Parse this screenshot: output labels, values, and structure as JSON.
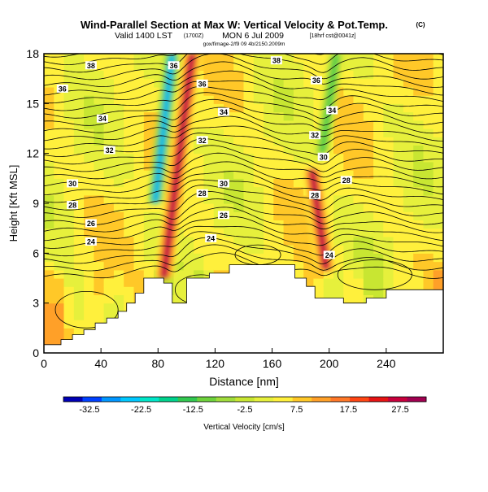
{
  "header": {
    "title": "Wind-Parallel Section at Max W: Vertical Velocity & Pot.Temp.",
    "copyright": "(C)",
    "valid_line": "Valid 1400 LST",
    "utc": "(1700Z)",
    "date": "MON 6 Jul 2009",
    "run": "[18hrf cst@0041z]",
    "subline": "gox/fimage-2/f9 09 4b/2150.2009m"
  },
  "chart_data": {
    "type": "heatmap",
    "xlabel": "Distance [nm]",
    "ylabel": "Height [Kft MSL]",
    "xlim": [
      0,
      280
    ],
    "ylim": [
      0,
      18
    ],
    "xticks": [
      0,
      40,
      80,
      120,
      160,
      200,
      240
    ],
    "yticks": [
      0,
      3,
      6,
      9,
      12,
      15,
      18
    ],
    "colorbar": {
      "label": "Vertical Velocity [cm/s]",
      "min": -37.5,
      "max": 32.5,
      "tick_values": [
        -32.5,
        -22.5,
        -12.5,
        -2.5,
        7.5,
        17.5,
        27.5
      ],
      "colors": [
        "#0000b4",
        "#0040ff",
        "#0096ff",
        "#00c8ff",
        "#00e6c8",
        "#00d28c",
        "#32c850",
        "#6ed23c",
        "#a0dc3c",
        "#c8e632",
        "#e6f03c",
        "#fff03c",
        "#ffc828",
        "#ffa028",
        "#ff7828",
        "#ff4614",
        "#e61414",
        "#c8003c",
        "#a00050"
      ]
    },
    "updraft_bands": [
      {
        "x_bottom": 84,
        "x_top": 104,
        "z_bottom": 4.5,
        "z_top": 18,
        "peak_cm_s": 32
      },
      {
        "x_bottom": 198,
        "x_top": 188,
        "z_bottom": 5,
        "z_top": 11,
        "peak_cm_s": 32
      }
    ],
    "downdraft_bands": [
      {
        "x_bottom": 78,
        "x_top": 90,
        "z_bottom": 9,
        "z_top": 18,
        "peak_cm_s": -30
      },
      {
        "x_bottom": 195,
        "x_top": 205,
        "z_bottom": 12,
        "z_top": 18,
        "peak_cm_s": -15
      }
    ],
    "theta_contour_labels": [
      {
        "value": "38",
        "x": 33,
        "z": 17.3
      },
      {
        "value": "36",
        "x": 13,
        "z": 15.9
      },
      {
        "value": "34",
        "x": 41,
        "z": 14.1
      },
      {
        "value": "32",
        "x": 46,
        "z": 12.2
      },
      {
        "value": "30",
        "x": 20,
        "z": 10.2
      },
      {
        "value": "28",
        "x": 20,
        "z": 8.9
      },
      {
        "value": "26",
        "x": 33,
        "z": 7.8
      },
      {
        "value": "24",
        "x": 33,
        "z": 6.7
      },
      {
        "value": "36",
        "x": 91,
        "z": 17.3
      },
      {
        "value": "36",
        "x": 111,
        "z": 16.2
      },
      {
        "value": "34",
        "x": 126,
        "z": 14.5
      },
      {
        "value": "32",
        "x": 111,
        "z": 12.8
      },
      {
        "value": "30",
        "x": 126,
        "z": 10.2
      },
      {
        "value": "28",
        "x": 111,
        "z": 9.6
      },
      {
        "value": "26",
        "x": 126,
        "z": 8.3
      },
      {
        "value": "24",
        "x": 117,
        "z": 6.9
      },
      {
        "value": "38",
        "x": 163,
        "z": 17.6
      },
      {
        "value": "36",
        "x": 191,
        "z": 16.4
      },
      {
        "value": "34",
        "x": 202,
        "z": 14.6
      },
      {
        "value": "32",
        "x": 190,
        "z": 13.1
      },
      {
        "value": "30",
        "x": 196,
        "z": 11.8
      },
      {
        "value": "28",
        "x": 212,
        "z": 10.4
      },
      {
        "value": "28",
        "x": 190,
        "z": 9.5
      },
      {
        "value": "24",
        "x": 200,
        "z": 5.9
      }
    ],
    "terrain": [
      [
        0,
        0.5
      ],
      [
        12,
        0.5
      ],
      [
        12,
        0.8
      ],
      [
        20,
        0.8
      ],
      [
        20,
        1.1
      ],
      [
        28,
        1.1
      ],
      [
        28,
        1.4
      ],
      [
        36,
        1.4
      ],
      [
        36,
        1.8
      ],
      [
        44,
        1.8
      ],
      [
        44,
        2.1
      ],
      [
        52,
        2.1
      ],
      [
        52,
        2.5
      ],
      [
        58,
        2.5
      ],
      [
        58,
        3.0
      ],
      [
        64,
        3.0
      ],
      [
        64,
        3.6
      ],
      [
        70,
        3.6
      ],
      [
        70,
        4.5
      ],
      [
        84,
        4.5
      ],
      [
        84,
        4.2
      ],
      [
        90,
        4.2
      ],
      [
        90,
        3.0
      ],
      [
        100,
        3.0
      ],
      [
        100,
        4.5
      ],
      [
        116,
        4.5
      ],
      [
        116,
        4.8
      ],
      [
        130,
        4.8
      ],
      [
        130,
        5.3
      ],
      [
        176,
        5.3
      ],
      [
        176,
        4.5
      ],
      [
        184,
        4.5
      ],
      [
        184,
        4.0
      ],
      [
        190,
        4.0
      ],
      [
        190,
        3.3
      ],
      [
        210,
        3.3
      ],
      [
        210,
        3.0
      ],
      [
        226,
        3.0
      ],
      [
        226,
        3.3
      ],
      [
        240,
        3.3
      ],
      [
        240,
        3.8
      ],
      [
        280,
        3.8
      ]
    ]
  }
}
